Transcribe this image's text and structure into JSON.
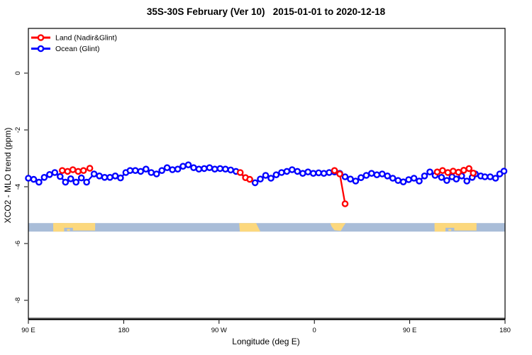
{
  "title": "35S-30S February (Ver 10)   2015-01-01 to 2020-12-18",
  "chart_data": {
    "type": "line",
    "title": "35S-30S February (Ver 10)   2015-01-01 to 2020-12-18",
    "xlabel": "Longitude (deg E)",
    "ylabel": "XCO2 - MLO trend (ppm)",
    "x_axis": {
      "note": "longitude axis starting at 90E and wrapping eastward 450 degrees",
      "t_range": [
        0,
        450
      ],
      "ticks_t": [
        0,
        90,
        180,
        270,
        360,
        450
      ],
      "tick_labels": [
        "90 E",
        "180",
        "90 W",
        "0",
        "90 E",
        "180"
      ]
    },
    "y_axis": {
      "ticks": [
        0,
        -2,
        -4,
        -6,
        -8
      ],
      "tick_labels": [
        "0",
        "-2",
        "-4",
        "-6",
        "-8"
      ],
      "range": [
        -8.7,
        1.6
      ],
      "grid": false
    },
    "legend": {
      "position": "top-left",
      "entries": [
        {
          "name": "land",
          "label": "Land (Nadir&Glint)",
          "color": "#ff0000"
        },
        {
          "name": "ocean",
          "label": "Ocean (Glint)",
          "color": "#0000ff"
        }
      ]
    },
    "series": [
      {
        "name": "Ocean (Glint)",
        "color": "#0000ff",
        "marker": "open-circle",
        "points": [
          [
            0,
            -3.7
          ],
          [
            5,
            -3.74
          ],
          [
            10,
            -3.84
          ],
          [
            15,
            -3.67
          ],
          [
            20,
            -3.57
          ],
          [
            25,
            -3.5
          ],
          [
            30,
            -3.64
          ],
          [
            35,
            -3.84
          ],
          [
            40,
            -3.72
          ],
          [
            45,
            -3.84
          ],
          [
            50,
            -3.69
          ],
          [
            55,
            -3.84
          ],
          [
            62,
            -3.55
          ],
          [
            67,
            -3.62
          ],
          [
            72,
            -3.67
          ],
          [
            77,
            -3.67
          ],
          [
            82,
            -3.62
          ],
          [
            87,
            -3.69
          ],
          [
            92,
            -3.5
          ],
          [
            96,
            -3.43
          ],
          [
            101,
            -3.43
          ],
          [
            106,
            -3.46
          ],
          [
            111,
            -3.38
          ],
          [
            116,
            -3.5
          ],
          [
            121,
            -3.55
          ],
          [
            126,
            -3.43
          ],
          [
            131,
            -3.33
          ],
          [
            136,
            -3.4
          ],
          [
            141,
            -3.38
          ],
          [
            146,
            -3.28
          ],
          [
            151,
            -3.23
          ],
          [
            156,
            -3.33
          ],
          [
            161,
            -3.38
          ],
          [
            166,
            -3.36
          ],
          [
            171,
            -3.33
          ],
          [
            176,
            -3.38
          ],
          [
            181,
            -3.36
          ],
          [
            186,
            -3.38
          ],
          [
            191,
            -3.41
          ],
          [
            196,
            -3.46
          ],
          [
            214,
            -3.86
          ],
          [
            219,
            -3.73
          ],
          [
            224,
            -3.6
          ],
          [
            229,
            -3.7
          ],
          [
            234,
            -3.58
          ],
          [
            239,
            -3.5
          ],
          [
            244,
            -3.46
          ],
          [
            249,
            -3.4
          ],
          [
            254,
            -3.46
          ],
          [
            259,
            -3.53
          ],
          [
            264,
            -3.48
          ],
          [
            269,
            -3.53
          ],
          [
            274,
            -3.51
          ],
          [
            279,
            -3.53
          ],
          [
            284,
            -3.5
          ],
          [
            289,
            -3.48
          ],
          [
            294,
            -3.53
          ],
          [
            299,
            -3.65
          ],
          [
            304,
            -3.73
          ],
          [
            309,
            -3.8
          ],
          [
            314,
            -3.68
          ],
          [
            319,
            -3.6
          ],
          [
            324,
            -3.53
          ],
          [
            329,
            -3.58
          ],
          [
            334,
            -3.55
          ],
          [
            339,
            -3.62
          ],
          [
            344,
            -3.7
          ],
          [
            349,
            -3.78
          ],
          [
            354,
            -3.83
          ],
          [
            359,
            -3.75
          ],
          [
            364,
            -3.7
          ],
          [
            369,
            -3.8
          ],
          [
            374,
            -3.62
          ],
          [
            379,
            -3.48
          ],
          [
            384,
            -3.6
          ],
          [
            390,
            -3.67
          ],
          [
            395,
            -3.78
          ],
          [
            400,
            -3.65
          ],
          [
            404,
            -3.73
          ],
          [
            409,
            -3.62
          ],
          [
            414,
            -3.8
          ],
          [
            419,
            -3.67
          ],
          [
            422,
            -3.55
          ],
          [
            427,
            -3.62
          ],
          [
            431,
            -3.65
          ],
          [
            436,
            -3.65
          ],
          [
            441,
            -3.7
          ],
          [
            445,
            -3.55
          ],
          [
            449,
            -3.45
          ]
        ]
      },
      {
        "name": "Land (Nadir&Glint)",
        "color": "#ff0000",
        "marker": "open-circle",
        "segments": [
          [
            [
              32,
              -3.43
            ],
            [
              37,
              -3.46
            ],
            [
              42,
              -3.4
            ],
            [
              47,
              -3.46
            ],
            [
              52,
              -3.43
            ],
            [
              58,
              -3.35
            ]
          ],
          [
            [
              200,
              -3.5
            ],
            [
              205,
              -3.68
            ],
            [
              209,
              -3.74
            ]
          ],
          [
            [
              289,
              -3.43
            ],
            [
              294,
              -3.55
            ],
            [
              299,
              -4.6
            ]
          ],
          [
            [
              386,
              -3.48
            ],
            [
              391,
              -3.43
            ],
            [
              396,
              -3.5
            ],
            [
              401,
              -3.45
            ],
            [
              406,
              -3.49
            ],
            [
              411,
              -3.42
            ],
            [
              416,
              -3.36
            ],
            [
              420,
              -3.52
            ]
          ]
        ]
      }
    ],
    "map_strip": {
      "description": "land/sea reference band across the plot",
      "sea_color": "#a9bdd8",
      "land_color": "#fcd87d",
      "v_top": -5.28,
      "v_bottom": -5.58,
      "land_patches": [
        {
          "name": "australia",
          "t_from": 23.5,
          "t_to": 63,
          "shape": "australia"
        },
        {
          "name": "south-america",
          "t_from": 199,
          "t_to": 219,
          "shape": "slant"
        },
        {
          "name": "africa",
          "t_from": 285,
          "t_to": 299.5,
          "shape": "taper"
        },
        {
          "name": "australia-repeat",
          "t_from": 383.5,
          "t_to": 423,
          "shape": "australia"
        }
      ]
    },
    "frame": {
      "axis_color": "#000000",
      "bottom_rule_color": "#4d4d4d"
    }
  }
}
